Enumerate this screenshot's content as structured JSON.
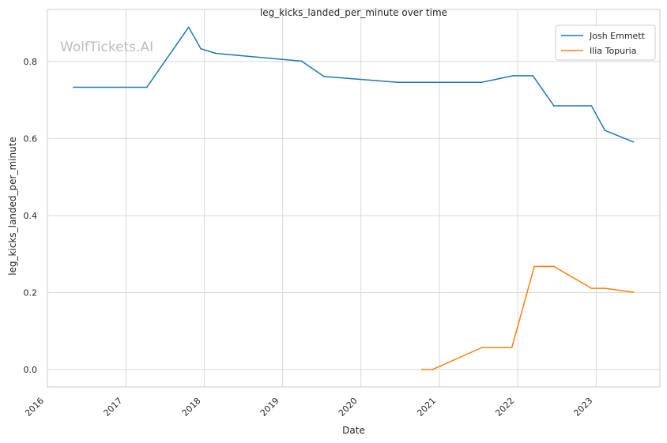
{
  "chart_data": {
    "type": "line",
    "title": "leg_kicks_landed_per_minute over time",
    "xlabel": "Date",
    "ylabel": "leg_kicks_landed_per_minute",
    "watermark": "WolfTickets.AI",
    "xlim": [
      "2016-01-01",
      "2023-10-25"
    ],
    "ylim": [
      -0.045,
      0.935
    ],
    "x_ticks": [
      "2016",
      "2017",
      "2018",
      "2019",
      "2020",
      "2021",
      "2022",
      "2023"
    ],
    "y_ticks": [
      0.0,
      0.2,
      0.4,
      0.6,
      0.8
    ],
    "y_tick_labels": [
      "0.0",
      "0.2",
      "0.4",
      "0.6",
      "0.8"
    ],
    "grid": true,
    "legend_position": "top-right",
    "series": [
      {
        "name": "Josh Emmett",
        "color": "#1f77b4",
        "x": [
          "2016-05-01",
          "2017-04-08",
          "2017-10-20",
          "2017-12-16",
          "2018-02-24",
          "2019-03-30",
          "2019-07-13",
          "2020-06-20",
          "2021-07-17",
          "2021-12-11",
          "2022-03-12",
          "2022-06-18",
          "2022-12-10",
          "2023-02-11",
          "2023-06-24"
        ],
        "values": [
          0.733,
          0.733,
          0.889,
          0.833,
          0.821,
          0.801,
          0.761,
          0.746,
          0.746,
          0.763,
          0.763,
          0.685,
          0.685,
          0.621,
          0.591
        ]
      },
      {
        "name": "Ilia Topuria",
        "color": "#ff7f0e",
        "x": [
          "2020-10-10",
          "2020-11-28",
          "2021-07-17",
          "2021-12-04",
          "2022-03-19",
          "2022-06-18",
          "2022-12-10",
          "2023-02-11",
          "2023-06-24"
        ],
        "values": [
          0.0,
          0.0,
          0.057,
          0.057,
          0.268,
          0.268,
          0.211,
          0.211,
          0.201
        ]
      }
    ]
  }
}
